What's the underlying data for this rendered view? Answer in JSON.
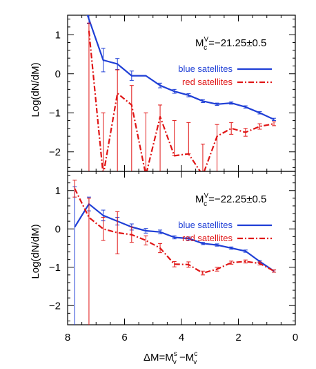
{
  "chart_data": {
    "type": "line",
    "colors": {
      "blue": "#1f3fd6",
      "red": "#e01515"
    },
    "xlabel_parts": {
      "base": "ΔM=M",
      "sup1": "s",
      "sub1": "v",
      "mid": " −M",
      "sup2": "c",
      "sub2": "v"
    },
    "ylabel": "Log(dN/dM)",
    "xlim": [
      8,
      0
    ],
    "xticks": [
      8,
      6,
      4,
      2,
      0
    ],
    "panels": [
      {
        "annotation": {
          "M": "M",
          "sup": "V",
          "sub": "c",
          "value": "=−21.25±0.5"
        },
        "ylim": [
          -2.5,
          1.5
        ],
        "yticks": [
          1,
          0,
          -1,
          -2
        ],
        "legend_position": "top-right",
        "series": [
          {
            "name": "blue satellites",
            "color": "blue",
            "style": "solid",
            "points": [
              {
                "x": 7.55,
                "y": 2.0
              },
              {
                "x": 7.25,
                "y": 1.4,
                "err": 0.12
              },
              {
                "x": 6.75,
                "y": 0.35,
                "err": 0.3
              },
              {
                "x": 6.25,
                "y": 0.25,
                "err": 0.14
              },
              {
                "x": 5.75,
                "y": -0.05,
                "err": 0.12
              },
              {
                "x": 5.25,
                "y": -0.05
              },
              {
                "x": 4.75,
                "y": -0.3,
                "err": 0.06
              },
              {
                "x": 4.25,
                "y": -0.45,
                "err": 0.05
              },
              {
                "x": 3.75,
                "y": -0.55,
                "err": 0.04
              },
              {
                "x": 3.25,
                "y": -0.7,
                "err": 0.04
              },
              {
                "x": 2.75,
                "y": -0.78,
                "err": 0.03
              },
              {
                "x": 2.25,
                "y": -0.75,
                "err": 0.03
              },
              {
                "x": 1.75,
                "y": -0.85,
                "err": 0.03
              },
              {
                "x": 1.25,
                "y": -1.0,
                "err": 0.03
              },
              {
                "x": 0.75,
                "y": -1.17,
                "err": 0.03
              }
            ]
          },
          {
            "name": "red satellites",
            "color": "red",
            "style": "dashdot",
            "points": [
              {
                "x": 7.25,
                "y": 1.1,
                "errlo": 3.6,
                "errhi": 0.2
              },
              {
                "x": 6.75,
                "y": -2.6,
                "errhi": 1.6
              },
              {
                "x": 6.25,
                "y": -0.5,
                "errlo": 2.0,
                "errhi": 0.6
              },
              {
                "x": 5.75,
                "y": -0.8,
                "errlo": 1.7,
                "errhi": 0.5
              },
              {
                "x": 5.25,
                "y": -2.6,
                "errhi": 1.6
              },
              {
                "x": 4.75,
                "y": -1.1,
                "errlo": 1.4,
                "errhi": 0.3
              },
              {
                "x": 4.25,
                "y": -2.1,
                "errhi": 0.9
              },
              {
                "x": 3.75,
                "y": -2.05,
                "errhi": 0.8
              },
              {
                "x": 3.25,
                "y": -2.6,
                "errhi": 0.8
              },
              {
                "x": 2.75,
                "y": -1.6,
                "errlo": 0.9,
                "errhi": 0.3
              },
              {
                "x": 2.25,
                "y": -1.4,
                "err": 0.15
              },
              {
                "x": 1.75,
                "y": -1.5,
                "err": 0.1
              },
              {
                "x": 1.25,
                "y": -1.35,
                "err": 0.07
              },
              {
                "x": 0.75,
                "y": -1.28,
                "err": 0.05
              }
            ]
          }
        ]
      },
      {
        "annotation": {
          "M": "M",
          "sup": "V",
          "sub": "c",
          "value": "=−22.25±0.5"
        },
        "ylim": [
          -2.5,
          1.5
        ],
        "yticks": [
          1,
          0,
          -1,
          -2
        ],
        "legend_position": "top-right",
        "series": [
          {
            "name": "blue satellites",
            "color": "blue",
            "style": "solid",
            "points": [
              {
                "x": 7.75,
                "y": 0.05,
                "errlo": 3.0,
                "errhi": 1.05
              },
              {
                "x": 7.25,
                "y": 0.65,
                "err": 0.18
              },
              {
                "x": 6.75,
                "y": 0.35,
                "err": 0.14
              },
              {
                "x": 6.25,
                "y": 0.2,
                "err": 0.1
              },
              {
                "x": 5.75,
                "y": 0.05,
                "err": 0.08
              },
              {
                "x": 5.25,
                "y": -0.05,
                "err": 0.06
              },
              {
                "x": 4.75,
                "y": -0.08,
                "err": 0.05
              },
              {
                "x": 4.25,
                "y": -0.22,
                "err": 0.04
              },
              {
                "x": 3.75,
                "y": -0.25,
                "err": 0.04
              },
              {
                "x": 3.25,
                "y": -0.38,
                "err": 0.03
              },
              {
                "x": 2.75,
                "y": -0.42,
                "err": 0.03
              },
              {
                "x": 2.25,
                "y": -0.5,
                "err": 0.03
              },
              {
                "x": 1.75,
                "y": -0.58,
                "err": 0.03
              },
              {
                "x": 1.25,
                "y": -0.85,
                "err": 0.03
              },
              {
                "x": 0.75,
                "y": -1.1,
                "err": 0.03
              }
            ]
          },
          {
            "name": "red satellites",
            "color": "red",
            "style": "dashdot",
            "points": [
              {
                "x": 7.75,
                "y": 1.05,
                "err": 0.22
              },
              {
                "x": 7.25,
                "y": 0.3,
                "errlo": 3.3,
                "errhi": 0.5
              },
              {
                "x": 6.75,
                "y": 0.0,
                "err": 0.3
              },
              {
                "x": 6.25,
                "y": -0.1,
                "err": 0.55
              },
              {
                "x": 5.75,
                "y": -0.15,
                "err": 0.2
              },
              {
                "x": 5.25,
                "y": -0.3,
                "err": 0.12
              },
              {
                "x": 4.75,
                "y": -0.5,
                "err": 0.12
              },
              {
                "x": 4.25,
                "y": -0.92,
                "err": 0.07
              },
              {
                "x": 3.75,
                "y": -0.93,
                "err": 0.07
              },
              {
                "x": 3.25,
                "y": -1.15,
                "err": 0.05
              },
              {
                "x": 2.75,
                "y": -1.05,
                "err": 0.05
              },
              {
                "x": 2.25,
                "y": -0.88,
                "err": 0.04
              },
              {
                "x": 1.75,
                "y": -0.85,
                "err": 0.04
              },
              {
                "x": 1.25,
                "y": -0.9,
                "err": 0.04
              },
              {
                "x": 0.75,
                "y": -1.1,
                "err": 0.03
              }
            ]
          }
        ]
      }
    ]
  }
}
